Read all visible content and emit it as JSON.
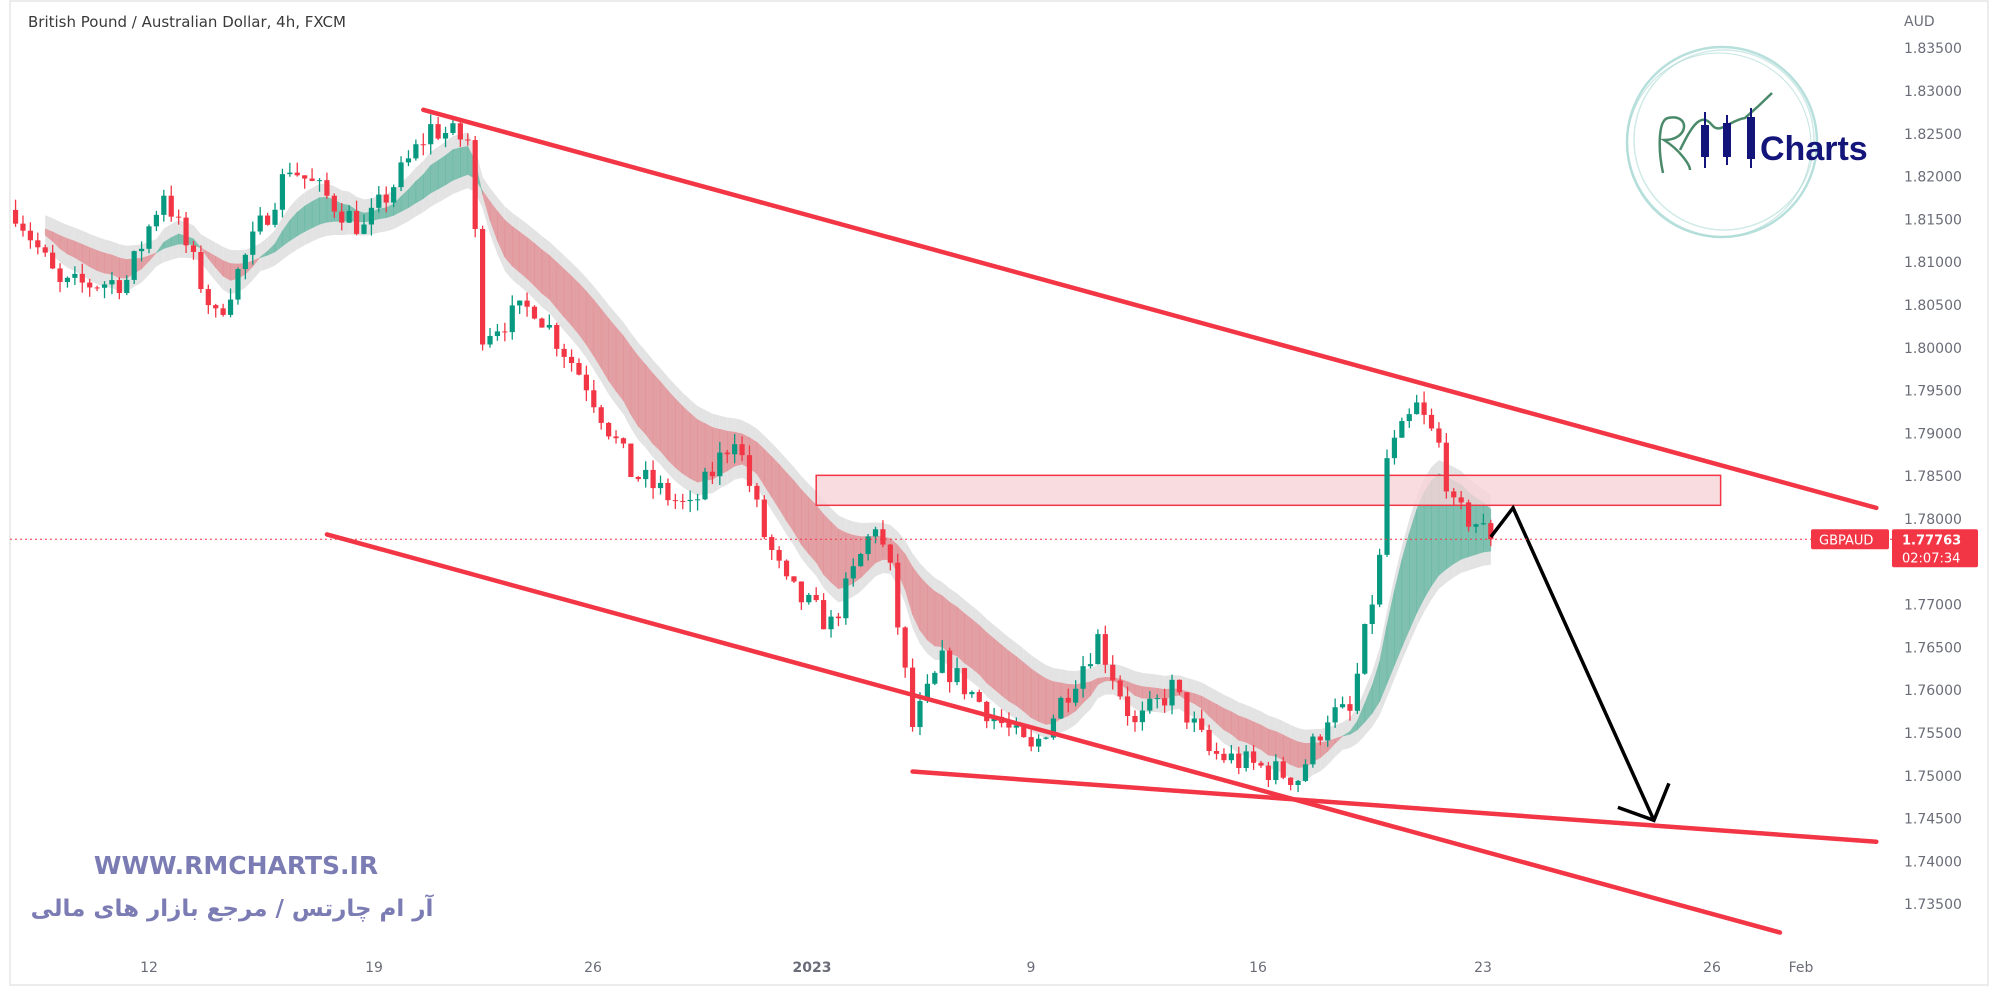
{
  "header": {
    "title": "British Pound / Australian Dollar, 4h, FXCM"
  },
  "price_axis": {
    "currency": "AUD",
    "ticks": [
      "1.83500",
      "1.83000",
      "1.82500",
      "1.82000",
      "1.81500",
      "1.81000",
      "1.80500",
      "1.80000",
      "1.79500",
      "1.79000",
      "1.78500",
      "1.78000",
      "1.77000",
      "1.76500",
      "1.76000",
      "1.75500",
      "1.75000",
      "1.74500",
      "1.74000",
      "1.73500"
    ]
  },
  "time_axis": {
    "ticks": [
      "12",
      "19",
      "26",
      "2023",
      "9",
      "16",
      "23",
      "26",
      "Feb"
    ]
  },
  "last_price": {
    "symbol": "GBPAUD",
    "price": "1.77763",
    "countdown": "02:07:34",
    "color": "#f23645"
  },
  "watermark": {
    "url": "WWW.RMCHARTS.IR",
    "tagline": "آر ام چارتس / مرجع بازار های مالی"
  },
  "logo": {
    "text": "Charts"
  },
  "colors": {
    "up": "#089981",
    "down": "#f23645",
    "drawing": "#f23645",
    "arrow": "#000000",
    "zone_fill": "#f8d3d7"
  },
  "chart_data": {
    "type": "candlestick",
    "title": "British Pound / Australian Dollar, 4h, FXCM",
    "symbol": "GBPAUD",
    "timeframe": "4h",
    "ylabel": "AUD",
    "ylim": [
      1.7325,
      1.8365
    ],
    "grid": false,
    "approx_close_path": [
      [
        "2022-12-07 00:00",
        1.8161
      ],
      [
        "2022-12-08 00:00",
        1.8071
      ],
      [
        "2022-12-09 12:00",
        1.8079
      ],
      [
        "2022-12-12 08:00",
        1.8183
      ],
      [
        "2022-12-13 12:00",
        1.8034
      ],
      [
        "2022-12-15 04:00",
        1.8213
      ],
      [
        "2022-12-16 20:00",
        1.8138
      ],
      [
        "2022-12-20 08:00",
        1.8257
      ],
      [
        "2022-12-21 04:00",
        1.8242
      ],
      [
        "2022-12-21 12:00",
        1.8019
      ],
      [
        "2022-12-22 16:00",
        1.8049
      ],
      [
        "2022-12-23 20:00",
        1.7959
      ],
      [
        "2022-12-26 20:00",
        1.7855
      ],
      [
        "2022-12-28 04:00",
        1.781
      ],
      [
        "2022-12-29 04:00",
        1.79
      ],
      [
        "2022-12-29 20:00",
        1.7781
      ],
      [
        "2022-12-30 08:00",
        1.7721
      ],
      [
        "2023-01-02 08:00",
        1.7676
      ],
      [
        "2023-01-03 08:00",
        1.7796
      ],
      [
        "2023-01-03 16:00",
        1.7736
      ],
      [
        "2023-01-04 04:00",
        1.7557
      ],
      [
        "2023-01-04 20:00",
        1.7632
      ],
      [
        "2023-01-05 16:00",
        1.7587
      ],
      [
        "2023-01-06 20:00",
        1.7527
      ],
      [
        "2023-01-10 08:00",
        1.7661
      ],
      [
        "2023-01-11 04:00",
        1.7557
      ],
      [
        "2023-01-12 00:00",
        1.7602
      ],
      [
        "2023-01-12 20:00",
        1.7527
      ],
      [
        "2023-01-13 20:00",
        1.7512
      ],
      [
        "2023-01-16 20:00",
        1.7498
      ],
      [
        "2023-01-17 12:00",
        1.7572
      ],
      [
        "2023-01-18 00:00",
        1.7572
      ],
      [
        "2023-01-18 16:00",
        1.7751
      ],
      [
        "2023-01-18 20:00",
        1.787
      ],
      [
        "2023-01-19 12:00",
        1.793
      ],
      [
        "2023-01-20 00:00",
        1.7885
      ],
      [
        "2023-01-20 08:00",
        1.781
      ],
      [
        "2023-01-20 20:00",
        1.7796
      ],
      [
        "2023-01-23 04:00",
        1.77763
      ]
    ],
    "drawings": [
      {
        "kind": "trendline",
        "name": "upper-channel-line",
        "points": [
          [
            "2022-12-20 04:00",
            1.8278
          ],
          [
            "2023-02-02 20:00",
            1.7813
          ]
        ]
      },
      {
        "kind": "trendline",
        "name": "lower-channel-line",
        "points": [
          [
            "2022-12-16 00:00",
            1.7782
          ],
          [
            "2023-01-31 16:00",
            1.7317
          ]
        ]
      },
      {
        "kind": "trendline",
        "name": "support-line",
        "points": [
          [
            "2023-01-04 04:00",
            1.7505
          ],
          [
            "2023-02-02 20:00",
            1.7423
          ]
        ]
      },
      {
        "kind": "rectangle",
        "name": "resistance-zone",
        "points": [
          [
            "2023-01-02 00:00",
            1.7851
          ],
          [
            "2023-01-30 08:00",
            1.7816
          ]
        ]
      },
      {
        "kind": "arrow",
        "name": "projection-arrow",
        "points": [
          [
            "2023-01-23 04:00",
            1.7779
          ],
          [
            "2023-01-23 16:00",
            1.7813
          ],
          [
            "2023-01-26 20:00",
            1.7448
          ]
        ]
      }
    ]
  }
}
